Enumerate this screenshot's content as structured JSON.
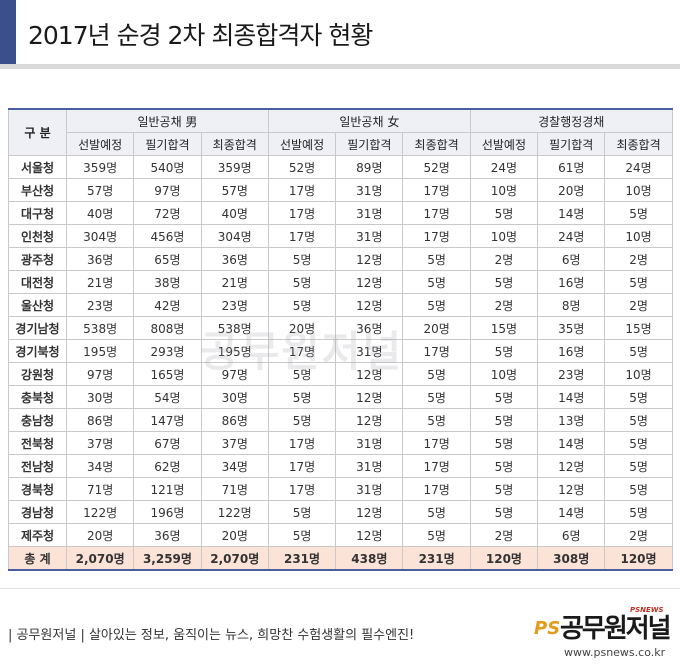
{
  "title": "2017년 순경 2차 최종합격자 현황",
  "watermark": "공무원저널",
  "table": {
    "gu_label": "구 분",
    "groups": [
      "일반공채 男",
      "일반공채 女",
      "경찰행정경채"
    ],
    "sub_columns": [
      "선발예정",
      "필기합격",
      "최종합격",
      "선발예정",
      "필기합격",
      "최종합격",
      "선발예정",
      "필기합격",
      "최종합격"
    ],
    "rows": [
      {
        "region": "서울청",
        "values": [
          "359명",
          "540명",
          "359명",
          "52명",
          "89명",
          "52명",
          "24명",
          "61명",
          "24명"
        ]
      },
      {
        "region": "부산청",
        "values": [
          "57명",
          "97명",
          "57명",
          "17명",
          "31명",
          "17명",
          "10명",
          "20명",
          "10명"
        ]
      },
      {
        "region": "대구청",
        "values": [
          "40명",
          "72명",
          "40명",
          "17명",
          "31명",
          "17명",
          "5명",
          "14명",
          "5명"
        ]
      },
      {
        "region": "인천청",
        "values": [
          "304명",
          "456명",
          "304명",
          "17명",
          "31명",
          "17명",
          "10명",
          "24명",
          "10명"
        ]
      },
      {
        "region": "광주청",
        "values": [
          "36명",
          "65명",
          "36명",
          "5명",
          "12명",
          "5명",
          "2명",
          "6명",
          "2명"
        ]
      },
      {
        "region": "대전청",
        "values": [
          "21명",
          "38명",
          "21명",
          "5명",
          "12명",
          "5명",
          "5명",
          "16명",
          "5명"
        ]
      },
      {
        "region": "울산청",
        "values": [
          "23명",
          "42명",
          "23명",
          "5명",
          "12명",
          "5명",
          "2명",
          "8명",
          "2명"
        ]
      },
      {
        "region": "경기남청",
        "values": [
          "538명",
          "808명",
          "538명",
          "20명",
          "36명",
          "20명",
          "15명",
          "35명",
          "15명"
        ]
      },
      {
        "region": "경기북청",
        "values": [
          "195명",
          "293명",
          "195명",
          "17명",
          "31명",
          "17명",
          "5명",
          "16명",
          "5명"
        ]
      },
      {
        "region": "강원청",
        "values": [
          "97명",
          "165명",
          "97명",
          "5명",
          "12명",
          "5명",
          "10명",
          "23명",
          "10명"
        ]
      },
      {
        "region": "충북청",
        "values": [
          "30명",
          "54명",
          "30명",
          "5명",
          "12명",
          "5명",
          "5명",
          "14명",
          "5명"
        ]
      },
      {
        "region": "충남청",
        "values": [
          "86명",
          "147명",
          "86명",
          "5명",
          "12명",
          "5명",
          "5명",
          "13명",
          "5명"
        ]
      },
      {
        "region": "전북청",
        "values": [
          "37명",
          "67명",
          "37명",
          "17명",
          "31명",
          "17명",
          "5명",
          "14명",
          "5명"
        ]
      },
      {
        "region": "전남청",
        "values": [
          "34명",
          "62명",
          "34명",
          "17명",
          "31명",
          "17명",
          "5명",
          "12명",
          "5명"
        ]
      },
      {
        "region": "경북청",
        "values": [
          "71명",
          "121명",
          "71명",
          "17명",
          "31명",
          "17명",
          "5명",
          "12명",
          "5명"
        ]
      },
      {
        "region": "경남청",
        "values": [
          "122명",
          "196명",
          "122명",
          "5명",
          "12명",
          "5명",
          "5명",
          "14명",
          "5명"
        ]
      },
      {
        "region": "제주청",
        "values": [
          "20명",
          "36명",
          "20명",
          "5명",
          "12명",
          "5명",
          "2명",
          "6명",
          "2명"
        ]
      }
    ],
    "total": {
      "region": "총 계",
      "values": [
        "2,070명",
        "3,259명",
        "2,070명",
        "231명",
        "438명",
        "231명",
        "120명",
        "308명",
        "120명"
      ]
    }
  },
  "footer": {
    "slogan": "| 공무원저널 |  살아있는 정보, 움직이는 뉴스, 희망찬 수험생활의 필수엔진!",
    "logo_ps": "PS",
    "logo_name": "공무원저널",
    "logo_tag": "PSNEWS",
    "logo_url": "www.psnews.co.kr"
  },
  "colors": {
    "accent": "#3a4f8c",
    "header_bg": "#eef0f6",
    "total_bg": "#fbe3d8",
    "logo_orange": "#e69a1a"
  }
}
